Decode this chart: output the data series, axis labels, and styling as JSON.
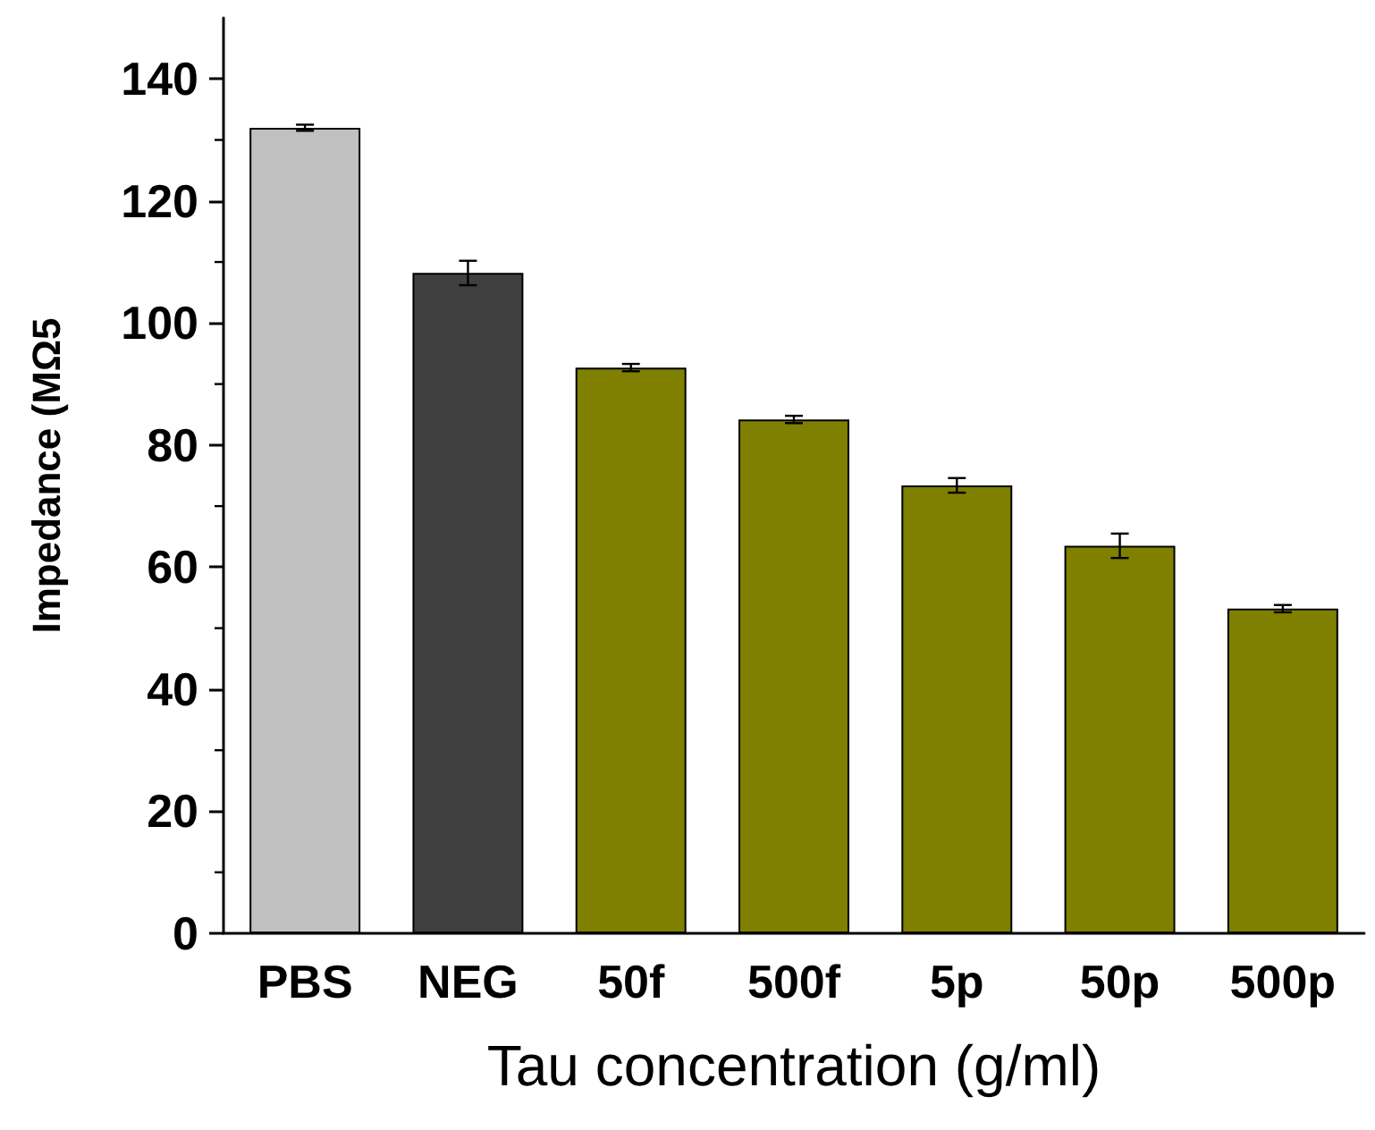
{
  "chart_data": {
    "type": "bar",
    "xlabel": "Tau concentration (g/ml)",
    "ylabel": "Impedance (MΩ5",
    "categories": [
      "PBS",
      "NEG",
      "50f",
      "500f",
      "5p",
      "50p",
      "500p"
    ],
    "values": [
      132,
      108.2,
      92.7,
      84.2,
      73.4,
      63.5,
      53.2
    ],
    "colors": [
      "#c0c0c0",
      "#404040",
      "#808000",
      "#808000",
      "#808000",
      "#808000",
      "#808000"
    ],
    "errors": [
      0.5,
      2,
      0.6,
      0.6,
      1.2,
      2,
      0.6
    ],
    "ylim": [
      0,
      150
    ],
    "yticks": [
      0,
      20,
      40,
      60,
      80,
      100,
      120,
      140
    ],
    "grid": false
  }
}
